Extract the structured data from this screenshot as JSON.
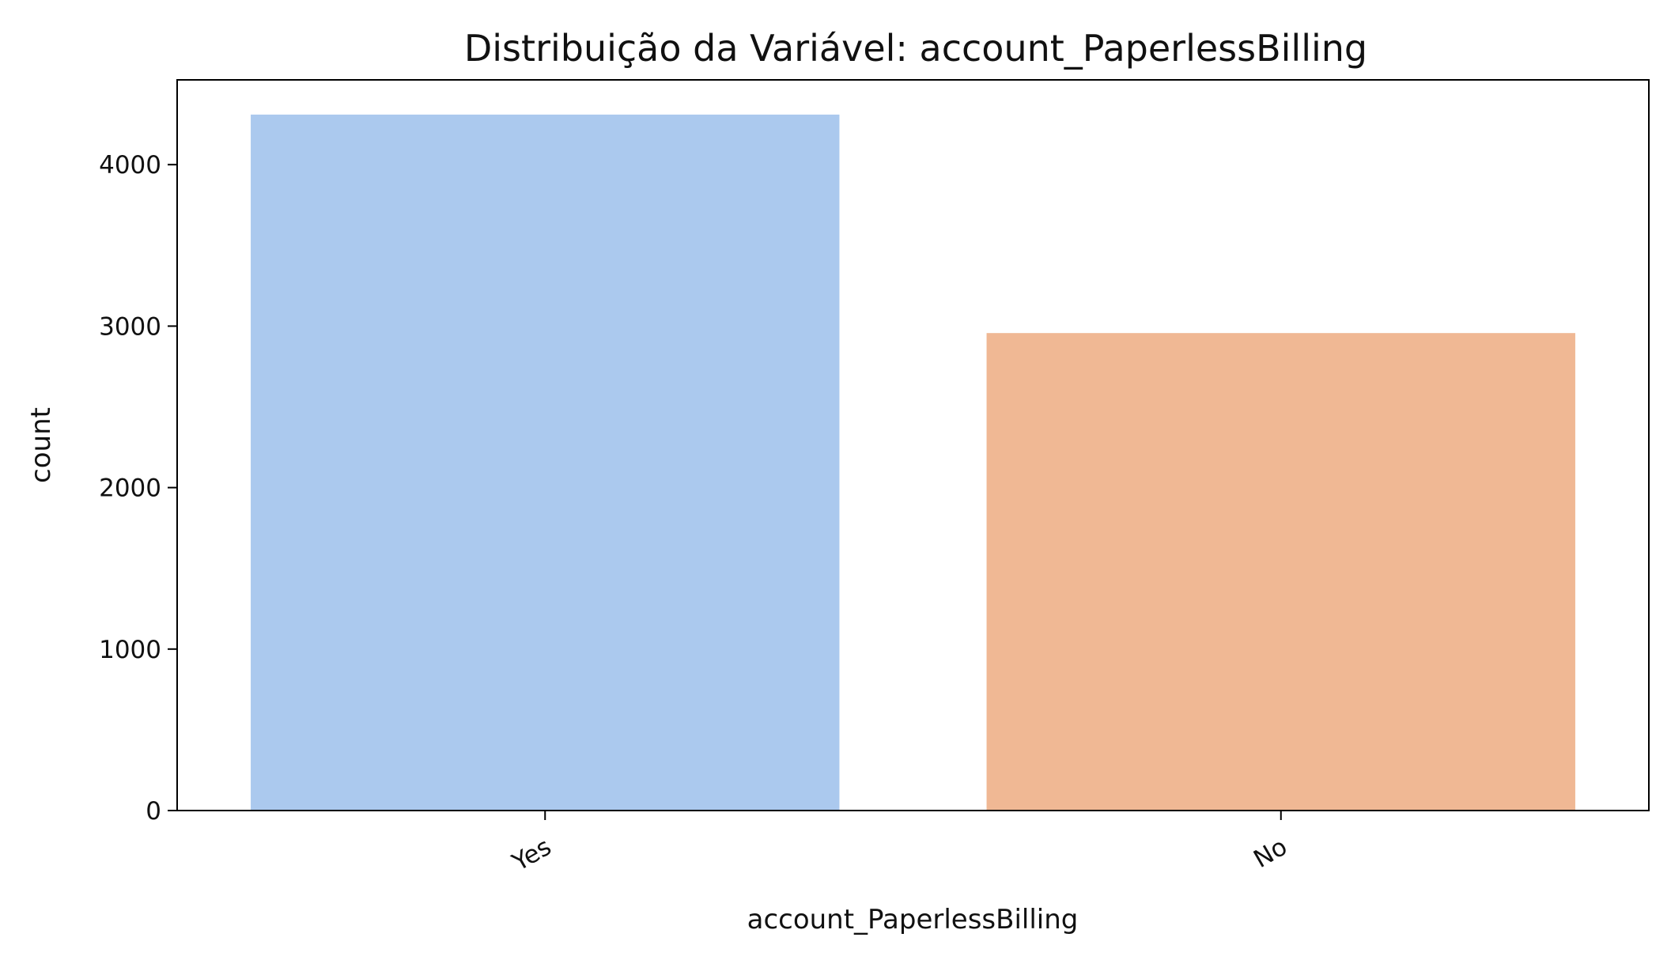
{
  "chart_data": {
    "type": "bar",
    "title": "Distribuição da Variável: account_PaperlessBilling",
    "xlabel": "account_PaperlessBilling",
    "ylabel": "count",
    "categories": [
      "Yes",
      "No"
    ],
    "values": [
      4310,
      2957
    ],
    "colors": [
      "#abc9ee",
      "#f0b894"
    ],
    "ylim": [
      0,
      4525
    ],
    "yticks": [
      0,
      1000,
      2000,
      3000,
      4000
    ],
    "ytick_labels": [
      "0",
      "1000",
      "2000",
      "3000",
      "4000"
    ],
    "grid": false,
    "legend": "none"
  }
}
